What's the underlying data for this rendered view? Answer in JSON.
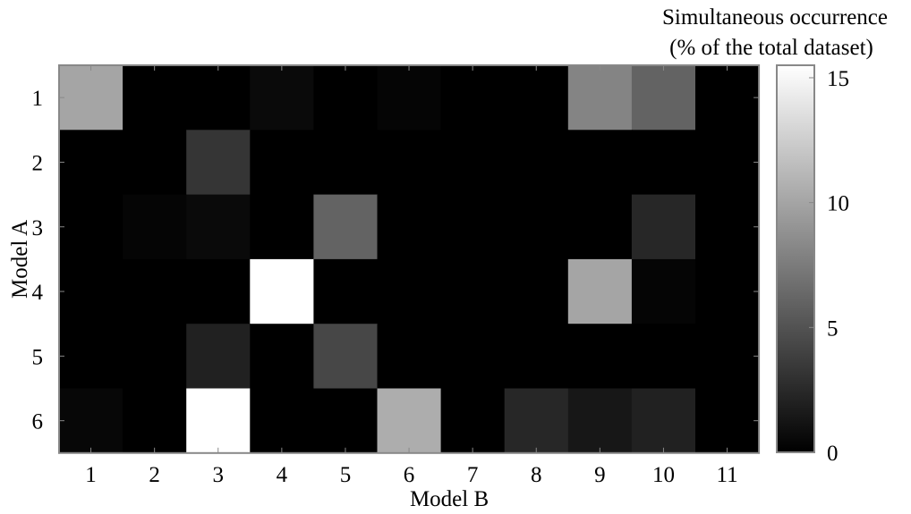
{
  "chart_data": {
    "type": "heatmap",
    "title": "",
    "xlabel": "Model B",
    "ylabel": "Model A",
    "x_categories": [
      "1",
      "2",
      "3",
      "4",
      "5",
      "6",
      "7",
      "8",
      "9",
      "10",
      "11"
    ],
    "y_categories": [
      "1",
      "2",
      "3",
      "4",
      "5",
      "6"
    ],
    "values": [
      [
        10.0,
        0.0,
        0.0,
        0.6,
        0.0,
        0.3,
        0.0,
        0.0,
        8.0,
        6.0,
        0.0
      ],
      [
        0.0,
        0.0,
        3.2,
        0.0,
        0.0,
        0.0,
        0.0,
        0.0,
        0.0,
        0.0,
        0.0
      ],
      [
        0.0,
        0.3,
        0.6,
        0.0,
        6.0,
        0.0,
        0.0,
        0.0,
        0.0,
        2.4,
        0.0
      ],
      [
        0.0,
        0.0,
        0.0,
        15.5,
        0.0,
        0.0,
        0.0,
        0.0,
        10.0,
        0.3,
        0.0
      ],
      [
        0.0,
        0.0,
        2.0,
        0.0,
        4.3,
        0.0,
        0.0,
        0.0,
        0.0,
        0.0,
        0.0
      ],
      [
        0.4,
        0.0,
        15.5,
        0.0,
        0.0,
        10.5,
        0.0,
        2.4,
        1.4,
        2.0,
        0.0
      ]
    ],
    "colorbar": {
      "title_line1": "Simultaneous occurrence",
      "title_line2": "(% of the total dataset)",
      "range": [
        0,
        15.5
      ],
      "ticks": [
        0,
        5,
        10,
        15
      ],
      "tick_labels": [
        "0",
        "5",
        "10",
        "15"
      ],
      "colormap": "gray"
    }
  }
}
